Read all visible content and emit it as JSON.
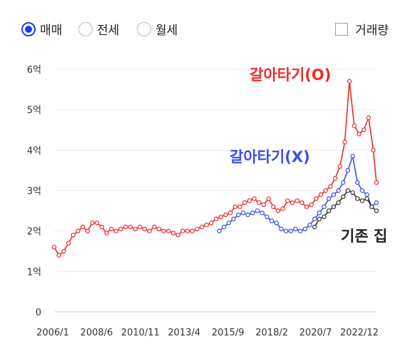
{
  "controls": {
    "radio_options": [
      {
        "label": "매매",
        "selected": true
      },
      {
        "label": "전세",
        "selected": false
      },
      {
        "label": "월세",
        "selected": false
      }
    ],
    "volume_checkbox": {
      "label": "거래량",
      "checked": false
    }
  },
  "colors": {
    "accent": "#1e3df5",
    "red": "#ee2b2b",
    "blue": "#3c4ee6",
    "black": "#333333"
  },
  "chart_data": {
    "type": "line",
    "x_tick_labels": [
      "2006/1",
      "2008/6",
      "2010/11",
      "2013/4",
      "2015/9",
      "2018/2",
      "2020/7",
      "2022/12"
    ],
    "y_tick_labels": [
      "0",
      "1억",
      "2억",
      "3억",
      "4억",
      "5억",
      "6억"
    ],
    "ylim": [
      0,
      6
    ],
    "xlim": [
      "2006-01",
      "2022-12"
    ],
    "grid": true,
    "annotations": [
      {
        "text": "갈아타기(O)",
        "color": "#ee2b2b"
      },
      {
        "text": "갈아타기(X)",
        "color": "#3c4ee6"
      },
      {
        "text": "기존 집",
        "color": "#222222"
      }
    ],
    "series": [
      {
        "label": "갈아타기(O)",
        "color": "#ee2b2b",
        "x": [
          "2006-01",
          "2006-04",
          "2006-07",
          "2006-10",
          "2007-01",
          "2007-04",
          "2007-07",
          "2007-10",
          "2008-01",
          "2008-04",
          "2008-07",
          "2008-10",
          "2009-01",
          "2009-04",
          "2009-07",
          "2009-10",
          "2010-01",
          "2010-04",
          "2010-07",
          "2010-10",
          "2011-01",
          "2011-04",
          "2011-07",
          "2011-10",
          "2012-01",
          "2012-04",
          "2012-07",
          "2012-10",
          "2013-01",
          "2013-04",
          "2013-07",
          "2013-10",
          "2014-01",
          "2014-04",
          "2014-07",
          "2014-10",
          "2015-01",
          "2015-04",
          "2015-07",
          "2015-10",
          "2016-01",
          "2016-04",
          "2016-07",
          "2016-10",
          "2017-01",
          "2017-04",
          "2017-07",
          "2017-10",
          "2018-01",
          "2018-04",
          "2018-07",
          "2018-10",
          "2019-01",
          "2019-04",
          "2019-07",
          "2019-10",
          "2020-01",
          "2020-04",
          "2020-07",
          "2020-10",
          "2021-01",
          "2021-04",
          "2021-07",
          "2021-10",
          "2022-01",
          "2022-04",
          "2022-07",
          "2022-10",
          "2022-12"
        ],
        "y": [
          1.6,
          1.4,
          1.5,
          1.7,
          1.9,
          2.0,
          2.1,
          2.0,
          2.2,
          2.2,
          2.1,
          1.95,
          2.05,
          2.0,
          2.05,
          2.1,
          2.1,
          2.05,
          2.1,
          2.05,
          2.0,
          2.1,
          2.05,
          2.0,
          2.0,
          1.95,
          1.9,
          2.0,
          2.0,
          2.0,
          2.05,
          2.1,
          2.15,
          2.2,
          2.3,
          2.35,
          2.4,
          2.45,
          2.6,
          2.6,
          2.7,
          2.75,
          2.8,
          2.7,
          2.65,
          2.8,
          2.6,
          2.5,
          2.55,
          2.75,
          2.7,
          2.75,
          2.7,
          2.6,
          2.65,
          2.8,
          2.9,
          3.0,
          3.1,
          3.3,
          3.6,
          4.2,
          5.7,
          4.6,
          4.4,
          4.5,
          4.8,
          4.0,
          3.2
        ]
      },
      {
        "label": "갈아타기(X)",
        "color": "#3c4ee6",
        "x": [
          "2014-09",
          "2014-12",
          "2015-03",
          "2015-06",
          "2015-09",
          "2015-12",
          "2016-03",
          "2016-06",
          "2016-09",
          "2016-12",
          "2017-03",
          "2017-06",
          "2017-09",
          "2017-12",
          "2018-03",
          "2018-06",
          "2018-09",
          "2018-12",
          "2019-03",
          "2019-06",
          "2019-09",
          "2019-12",
          "2020-03",
          "2020-06",
          "2020-09",
          "2020-12",
          "2021-03",
          "2021-06",
          "2021-09",
          "2021-12",
          "2022-03",
          "2022-06",
          "2022-09",
          "2022-12"
        ],
        "y": [
          2.0,
          2.1,
          2.2,
          2.3,
          2.4,
          2.45,
          2.4,
          2.45,
          2.5,
          2.45,
          2.35,
          2.25,
          2.2,
          2.05,
          2.0,
          2.0,
          2.05,
          2.0,
          2.05,
          2.15,
          2.3,
          2.45,
          2.6,
          2.8,
          2.9,
          3.0,
          3.2,
          3.5,
          3.85,
          3.2,
          3.0,
          2.9,
          2.6,
          2.7
        ]
      },
      {
        "label": "기존 집",
        "color": "#333333",
        "x": [
          "2019-09",
          "2019-12",
          "2020-03",
          "2020-06",
          "2020-09",
          "2020-12",
          "2021-03",
          "2021-06",
          "2021-09",
          "2021-12",
          "2022-03",
          "2022-06",
          "2022-09",
          "2022-12"
        ],
        "y": [
          2.1,
          2.3,
          2.35,
          2.5,
          2.6,
          2.7,
          2.85,
          3.0,
          2.95,
          2.8,
          2.75,
          2.8,
          2.6,
          2.5
        ]
      }
    ]
  }
}
